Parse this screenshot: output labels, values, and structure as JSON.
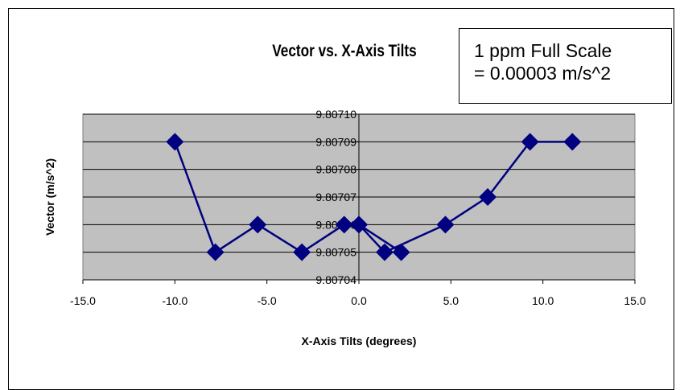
{
  "chart_data": {
    "type": "scatter",
    "title": "Vector vs. X-Axis Tilts",
    "xlabel": "X-Axis Tilts (degrees)",
    "ylabel": "Vector (m/s^2)",
    "xlim": [
      -15,
      15
    ],
    "ylim": [
      9.80704,
      9.8071
    ],
    "xticks": [
      "-15.0",
      "-10.0",
      "-5.0",
      "0.0",
      "5.0",
      "10.0",
      "15.0"
    ],
    "yticks": [
      "9.80704",
      "9.80705",
      "9.80706",
      "9.80707",
      "9.80708",
      "9.80709",
      "9.80710"
    ],
    "grid": "horizontal",
    "plot_background": "#C0C0C0",
    "series_color": "#000080",
    "marker": "diamond",
    "connected": true,
    "series": [
      {
        "points": [
          {
            "x": -10.0,
            "y": 9.80709
          },
          {
            "x": -7.8,
            "y": 9.80705
          },
          {
            "x": -5.5,
            "y": 9.80706
          },
          {
            "x": -3.1,
            "y": 9.80705
          },
          {
            "x": -0.8,
            "y": 9.80706
          },
          {
            "x": 0.0,
            "y": 9.80706
          },
          {
            "x": 2.3,
            "y": 9.80705
          },
          {
            "x": 0.0,
            "y": 9.80706
          },
          {
            "x": 1.4,
            "y": 9.80705
          },
          {
            "x": 4.7,
            "y": 9.80706
          },
          {
            "x": 7.0,
            "y": 9.80707
          },
          {
            "x": 9.3,
            "y": 9.80709
          },
          {
            "x": 11.6,
            "y": 9.80709
          }
        ]
      }
    ]
  },
  "annotation": {
    "line1": "1 ppm Full Scale",
    "line2": "= 0.00003 m/s^2"
  }
}
